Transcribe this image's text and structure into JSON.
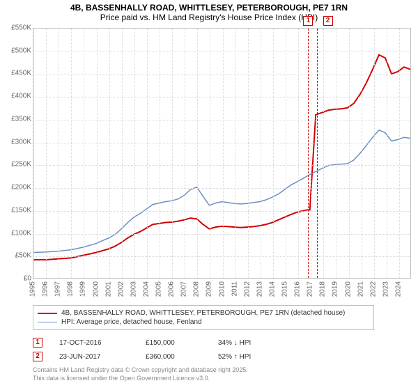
{
  "title": {
    "main": "4B, BASSENHALLY ROAD, WHITTLESEY, PETERBOROUGH, PE7 1RN",
    "sub": "Price paid vs. HM Land Registry's House Price Index (HPI)"
  },
  "chart": {
    "type": "line",
    "background_color": "#ffffff",
    "grid_color": "#d8d8d8",
    "border_color": "#bfbfbf",
    "y": {
      "min": 0,
      "max": 550000,
      "ticks": [
        0,
        50000,
        100000,
        150000,
        200000,
        250000,
        300000,
        350000,
        400000,
        450000,
        500000,
        550000
      ],
      "tick_labels": [
        "£0",
        "£50K",
        "£100K",
        "£150K",
        "£200K",
        "£250K",
        "£300K",
        "£350K",
        "£400K",
        "£450K",
        "£500K",
        "£550K"
      ],
      "label_fontsize": 10,
      "label_color": "#666666"
    },
    "x": {
      "min": 1995,
      "max": 2025,
      "ticks": [
        1995,
        1996,
        1997,
        1998,
        1999,
        2000,
        2001,
        2002,
        2003,
        2004,
        2005,
        2006,
        2007,
        2008,
        2009,
        2010,
        2011,
        2012,
        2013,
        2014,
        2015,
        2016,
        2017,
        2018,
        2019,
        2020,
        2021,
        2022,
        2023,
        2024
      ],
      "tick_labels": [
        "1995",
        "1996",
        "1997",
        "1998",
        "1999",
        "2000",
        "2001",
        "2002",
        "2003",
        "2004",
        "2005",
        "2006",
        "2007",
        "2008",
        "2009",
        "2010",
        "2011",
        "2012",
        "2013",
        "2014",
        "2015",
        "2016",
        "2017",
        "2018",
        "2019",
        "2020",
        "2021",
        "2022",
        "2023",
        "2024"
      ],
      "label_fontsize": 10,
      "label_color": "#666666"
    },
    "series": [
      {
        "name": "price_paid",
        "label": "4B, BASSENHALLY ROAD, WHITTLESEY, PETERBOROUGH, PE7 1RN (detached house)",
        "color": "#d00000",
        "line_width": 2,
        "points": [
          [
            1995.0,
            40000
          ],
          [
            1996.0,
            40000
          ],
          [
            1997.0,
            42000
          ],
          [
            1998.0,
            44000
          ],
          [
            1998.5,
            47000
          ],
          [
            1999.0,
            50000
          ],
          [
            1999.5,
            53000
          ],
          [
            2000.0,
            56000
          ],
          [
            2000.5,
            60000
          ],
          [
            2001.0,
            64000
          ],
          [
            2001.5,
            70000
          ],
          [
            2002.0,
            78000
          ],
          [
            2002.5,
            88000
          ],
          [
            2003.0,
            96000
          ],
          [
            2003.5,
            102000
          ],
          [
            2004.0,
            110000
          ],
          [
            2004.5,
            118000
          ],
          [
            2005.0,
            120000
          ],
          [
            2005.5,
            122000
          ],
          [
            2006.0,
            123000
          ],
          [
            2006.5,
            125000
          ],
          [
            2007.0,
            128000
          ],
          [
            2007.5,
            132000
          ],
          [
            2008.0,
            130000
          ],
          [
            2008.5,
            118000
          ],
          [
            2009.0,
            108000
          ],
          [
            2009.5,
            112000
          ],
          [
            2010.0,
            114000
          ],
          [
            2010.5,
            113000
          ],
          [
            2011.0,
            112000
          ],
          [
            2011.5,
            111000
          ],
          [
            2012.0,
            112000
          ],
          [
            2012.5,
            113000
          ],
          [
            2013.0,
            115000
          ],
          [
            2013.5,
            118000
          ],
          [
            2014.0,
            122000
          ],
          [
            2014.5,
            128000
          ],
          [
            2015.0,
            134000
          ],
          [
            2015.5,
            140000
          ],
          [
            2016.0,
            145000
          ],
          [
            2016.5,
            148000
          ],
          [
            2016.79,
            150000
          ],
          [
            2017.0,
            150000
          ],
          [
            2017.47,
            360000
          ],
          [
            2017.48,
            360000
          ],
          [
            2018.0,
            365000
          ],
          [
            2018.5,
            370000
          ],
          [
            2019.0,
            372000
          ],
          [
            2019.5,
            373000
          ],
          [
            2020.0,
            375000
          ],
          [
            2020.5,
            385000
          ],
          [
            2021.0,
            405000
          ],
          [
            2021.5,
            430000
          ],
          [
            2022.0,
            460000
          ],
          [
            2022.5,
            492000
          ],
          [
            2023.0,
            485000
          ],
          [
            2023.5,
            450000
          ],
          [
            2024.0,
            455000
          ],
          [
            2024.5,
            465000
          ],
          [
            2025.0,
            460000
          ]
        ]
      },
      {
        "name": "hpi",
        "label": "HPI: Average price, detached house, Fenland",
        "color": "#6a8fc5",
        "line_width": 1.5,
        "points": [
          [
            1995.0,
            56000
          ],
          [
            1996.0,
            57000
          ],
          [
            1997.0,
            59000
          ],
          [
            1998.0,
            62000
          ],
          [
            1998.5,
            65000
          ],
          [
            1999.0,
            68000
          ],
          [
            1999.5,
            72000
          ],
          [
            2000.0,
            76000
          ],
          [
            2000.5,
            82000
          ],
          [
            2001.0,
            88000
          ],
          [
            2001.5,
            96000
          ],
          [
            2002.0,
            108000
          ],
          [
            2002.5,
            122000
          ],
          [
            2003.0,
            134000
          ],
          [
            2003.5,
            142000
          ],
          [
            2004.0,
            152000
          ],
          [
            2004.5,
            162000
          ],
          [
            2005.0,
            165000
          ],
          [
            2005.5,
            168000
          ],
          [
            2006.0,
            170000
          ],
          [
            2006.5,
            174000
          ],
          [
            2007.0,
            182000
          ],
          [
            2007.5,
            195000
          ],
          [
            2008.0,
            200000
          ],
          [
            2008.5,
            180000
          ],
          [
            2009.0,
            160000
          ],
          [
            2009.5,
            165000
          ],
          [
            2010.0,
            168000
          ],
          [
            2010.5,
            166000
          ],
          [
            2011.0,
            164000
          ],
          [
            2011.5,
            163000
          ],
          [
            2012.0,
            164000
          ],
          [
            2012.5,
            166000
          ],
          [
            2013.0,
            168000
          ],
          [
            2013.5,
            172000
          ],
          [
            2014.0,
            178000
          ],
          [
            2014.5,
            185000
          ],
          [
            2015.0,
            195000
          ],
          [
            2015.5,
            205000
          ],
          [
            2016.0,
            212000
          ],
          [
            2016.5,
            220000
          ],
          [
            2017.0,
            228000
          ],
          [
            2017.5,
            235000
          ],
          [
            2018.0,
            242000
          ],
          [
            2018.5,
            248000
          ],
          [
            2019.0,
            250000
          ],
          [
            2019.5,
            251000
          ],
          [
            2020.0,
            252000
          ],
          [
            2020.5,
            260000
          ],
          [
            2021.0,
            275000
          ],
          [
            2021.5,
            292000
          ],
          [
            2022.0,
            310000
          ],
          [
            2022.5,
            326000
          ],
          [
            2023.0,
            320000
          ],
          [
            2023.5,
            302000
          ],
          [
            2024.0,
            305000
          ],
          [
            2024.5,
            310000
          ],
          [
            2025.0,
            308000
          ]
        ]
      }
    ],
    "markers": [
      {
        "id": "1",
        "x": 2016.79,
        "color": "#d00000"
      },
      {
        "id": "2",
        "x": 2017.47,
        "color": "#d00000"
      }
    ]
  },
  "legend": {
    "border_color": "#bfbfbf",
    "fontsize": 10
  },
  "sales": [
    {
      "id": "1",
      "date": "17-OCT-2016",
      "price": "£150,000",
      "delta": "34% ↓ HPI",
      "color": "#d00000"
    },
    {
      "id": "2",
      "date": "23-JUN-2017",
      "price": "£360,000",
      "delta": "52% ↑ HPI",
      "color": "#d00000"
    }
  ],
  "attribution": {
    "line1": "Contains HM Land Registry data © Crown copyright and database right 2025.",
    "line2": "This data is licensed under the Open Government Licence v3.0."
  }
}
